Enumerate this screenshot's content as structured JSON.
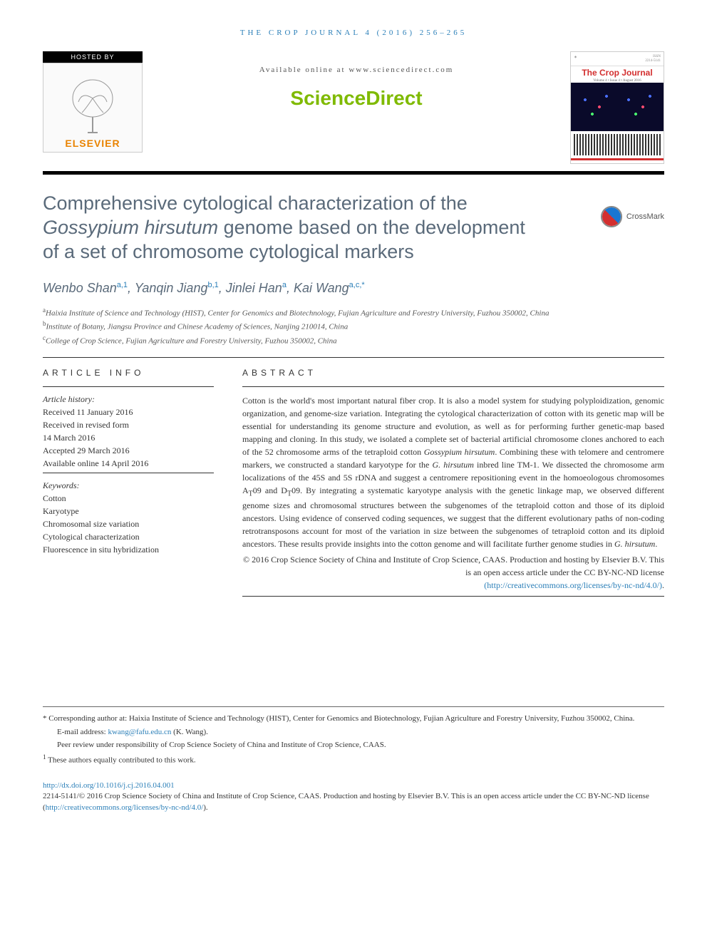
{
  "running_head": "THE CROP JOURNAL 4 (2016) 256–265",
  "header": {
    "hosted_by": "HOSTED BY",
    "elsevier": "ELSEVIER",
    "available_online": "Available online at www.sciencedirect.com",
    "sciencedirect": "ScienceDirect",
    "journal_cover_title": "The Crop Journal",
    "journal_cover_sub": "Volume 4 • Issue 4 • August 2016",
    "crossmark": "CrossMark"
  },
  "title_parts": {
    "p1": "Comprehensive cytological characterization of the ",
    "italic": "Gossypium hirsutum",
    "p2": " genome based on the development of a set of chromosome cytological markers"
  },
  "authors": [
    {
      "name": "Wenbo Shan",
      "aff": "a,1"
    },
    {
      "name": "Yanqin Jiang",
      "aff": "b,1"
    },
    {
      "name": "Jinlei Han",
      "aff": "a"
    },
    {
      "name": "Kai Wang",
      "aff": "a,c,*"
    }
  ],
  "affiliations": [
    {
      "sup": "a",
      "text": "Haixia Institute of Science and Technology (HIST), Center for Genomics and Biotechnology, Fujian Agriculture and Forestry University, Fuzhou 350002, China"
    },
    {
      "sup": "b",
      "text": "Institute of Botany, Jiangsu Province and Chinese Academy of Sciences, Nanjing 210014, China"
    },
    {
      "sup": "c",
      "text": "College of Crop Science, Fujian Agriculture and Forestry University, Fuzhou 350002, China"
    }
  ],
  "article_info_head": "ARTICLE INFO",
  "abstract_head": "ABSTRACT",
  "history": {
    "label": "Article history:",
    "items": [
      "Received 11 January 2016",
      "Received in revised form",
      "14 March 2016",
      "Accepted 29 March 2016",
      "Available online 14 April 2016"
    ]
  },
  "keywords": {
    "label": "Keywords:",
    "items": [
      "Cotton",
      "Karyotype",
      "Chromosomal size variation",
      "Cytological characterization",
      "Fluorescence in situ hybridization"
    ]
  },
  "abstract": "Cotton is the world's most important natural fiber crop. It is also a model system for studying polyploidization, genomic organization, and genome-size variation. Integrating the cytological characterization of cotton with its genetic map will be essential for understanding its genome structure and evolution, as well as for performing further genetic-map based mapping and cloning. In this study, we isolated a complete set of bacterial artificial chromosome clones anchored to each of the 52 chromosome arms of the tetraploid cotton Gossypium hirsutum. Combining these with telomere and centromere markers, we constructed a standard karyotype for the G. hirsutum inbred line TM-1. We dissected the chromosome arm localizations of the 45S and 5S rDNA and suggest a centromere repositioning event in the homoeologous chromosomes AT09 and DT09. By integrating a systematic karyotype analysis with the genetic linkage map, we observed different genome sizes and chromosomal structures between the subgenomes of the tetraploid cotton and those of its diploid ancestors. Using evidence of conserved coding sequences, we suggest that the different evolutionary paths of non-coding retrotransposons account for most of the variation in size between the subgenomes of tetraploid cotton and its diploid ancestors. These results provide insights into the cotton genome and will facilitate further genome studies in G. hirsutum.",
  "copyright": {
    "text": "© 2016 Crop Science Society of China and Institute of Crop Science, CAAS. Production and hosting by Elsevier B.V. This is an open access article under the CC BY-NC-ND license",
    "link_text": "(http://creativecommons.org/licenses/by-nc-nd/4.0/)",
    "link_url": "http://creativecommons.org/licenses/by-nc-nd/4.0/"
  },
  "footnotes": {
    "corresponding": "* Corresponding author at: Haixia Institute of Science and Technology (HIST), Center for Genomics and Biotechnology, Fujian Agriculture and Forestry University, Fuzhou 350002, China.",
    "email_label": "E-mail address: ",
    "email": "kwang@fafu.edu.cn",
    "email_author": " (K. Wang).",
    "peer": "Peer review under responsibility of Crop Science Society of China and Institute of Crop Science, CAAS.",
    "equal": "These authors equally contributed to this work.",
    "equal_sup": "1"
  },
  "doi": {
    "url": "http://dx.doi.org/10.1016/j.cj.2016.04.001",
    "issn_line": "2214-5141/© 2016 Crop Science Society of China and Institute of Crop Science, CAAS. Production and hosting by Elsevier B.V. This is an open access article under the CC BY-NC-ND license (",
    "cc_url": "http://creativecommons.org/licenses/by-nc-nd/4.0/",
    "close": ")."
  },
  "colors": {
    "link": "#2b7fb8",
    "title": "#5a6a7a",
    "sd_green": "#7fba00",
    "elsevier_orange": "#e98300",
    "cover_red": "#d32f2f"
  }
}
